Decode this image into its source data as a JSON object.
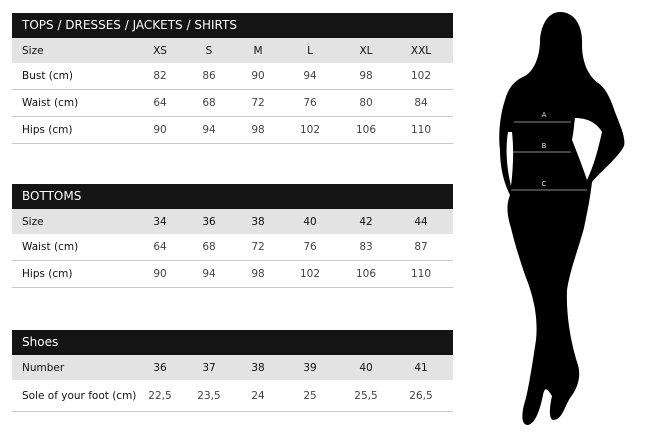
{
  "sections": [
    {
      "title": "TOPS / DRESSES / JACKETS / SHIRTS",
      "rows": [
        {
          "label": "Size",
          "values": [
            "XS",
            "S",
            "M",
            "L",
            "XL",
            "XXL"
          ]
        },
        {
          "label": "Bust (cm)",
          "values": [
            "82",
            "86",
            "90",
            "94",
            "98",
            "102"
          ]
        },
        {
          "label": "Waist (cm)",
          "values": [
            "64",
            "68",
            "72",
            "76",
            "80",
            "84"
          ]
        },
        {
          "label": "Hips (cm)",
          "values": [
            "90",
            "94",
            "98",
            "102",
            "106",
            "110"
          ]
        }
      ]
    },
    {
      "title": "BOTTOMS",
      "rows": [
        {
          "label": "Size",
          "values": [
            "34",
            "36",
            "38",
            "40",
            "42",
            "44"
          ]
        },
        {
          "label": "Waist (cm)",
          "values": [
            "64",
            "68",
            "72",
            "76",
            "83",
            "87"
          ]
        },
        {
          "label": "Hips (cm)",
          "values": [
            "90",
            "94",
            "98",
            "102",
            "106",
            "110"
          ]
        }
      ]
    },
    {
      "title": "Shoes",
      "rows": [
        {
          "label": "Number",
          "values": [
            "36",
            "37",
            "38",
            "39",
            "40",
            "41"
          ]
        },
        {
          "label": "Sole of your foot (cm)",
          "values": [
            "22,5",
            "23,5",
            "24",
            "25",
            "25,5",
            "26,5"
          ]
        }
      ]
    }
  ],
  "figure": {
    "markers": [
      "A",
      "B",
      "C"
    ],
    "silhouette_color": "#000000",
    "line_color": "#8a8a8a"
  }
}
